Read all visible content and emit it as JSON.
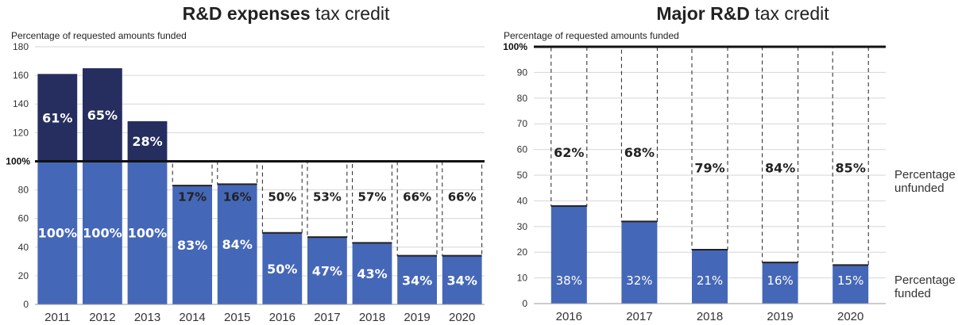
{
  "charts": [
    {
      "id": "left",
      "title_bold": "R&D expenses",
      "title_rest": " tax credit",
      "ylabel": "Percentage of requested amounts funded",
      "chart_data": {
        "type": "bar",
        "categories": [
          "2011",
          "2012",
          "2013",
          "2014",
          "2015",
          "2016",
          "2017",
          "2018",
          "2019",
          "2020"
        ],
        "ylim": [
          0,
          180
        ],
        "yticks": [
          0,
          20,
          40,
          60,
          80,
          120,
          140,
          160,
          180
        ],
        "reference_line": {
          "value": 100,
          "label": "100%"
        },
        "series": [
          {
            "values": [
              100,
              100,
              100,
              83,
              84,
              50,
              47,
              43,
              34,
              34
            ],
            "labels": [
              "100%",
              "100%",
              "100%",
              "83%",
              "84%",
              "50%",
              "47%",
              "43%",
              "34%",
              "34%"
            ]
          },
          {
            "values": [
              61,
              65,
              28,
              0,
              0,
              0,
              0,
              0,
              0,
              0
            ],
            "labels": [
              "61%",
              "65%",
              "28%",
              "",
              "",
              "",
              "",
              "",
              "",
              ""
            ]
          },
          {
            "values": [
              0,
              0,
              0,
              17,
              16,
              50,
              53,
              57,
              66,
              66
            ],
            "labels": [
              "",
              "",
              "",
              "17%",
              "16%",
              "50%",
              "53%",
              "57%",
              "66%",
              "66%"
            ]
          }
        ],
        "colors": {
          "funded": "#4567b8",
          "excess": "#252e5e"
        }
      }
    },
    {
      "id": "right",
      "title_bold": "Major R&D",
      "title_rest": " tax credit",
      "ylabel": "Percentage of requested amounts funded",
      "chart_data": {
        "type": "bar",
        "categories": [
          "2016",
          "2017",
          "2018",
          "2019",
          "2020"
        ],
        "ylim": [
          0,
          100
        ],
        "yticks": [
          0,
          10,
          20,
          30,
          40,
          50,
          60,
          70,
          80,
          90
        ],
        "reference_line": {
          "value": 100,
          "label": "100%"
        },
        "series": [
          {
            "name": "Percentage funded",
            "values": [
              38,
              32,
              21,
              16,
              15
            ],
            "labels": [
              "38%",
              "32%",
              "21%",
              "16%",
              "15%"
            ]
          },
          {
            "name": "Percentage unfunded",
            "values": [
              62,
              68,
              79,
              84,
              85
            ],
            "labels": [
              "62%",
              "68%",
              "79%",
              "84%",
              "85%"
            ]
          }
        ],
        "colors": {
          "funded": "#4567b8"
        }
      }
    }
  ],
  "legend": {
    "unfunded": [
      "Percentage",
      "unfunded"
    ],
    "funded": [
      "Percentage",
      "funded"
    ]
  }
}
